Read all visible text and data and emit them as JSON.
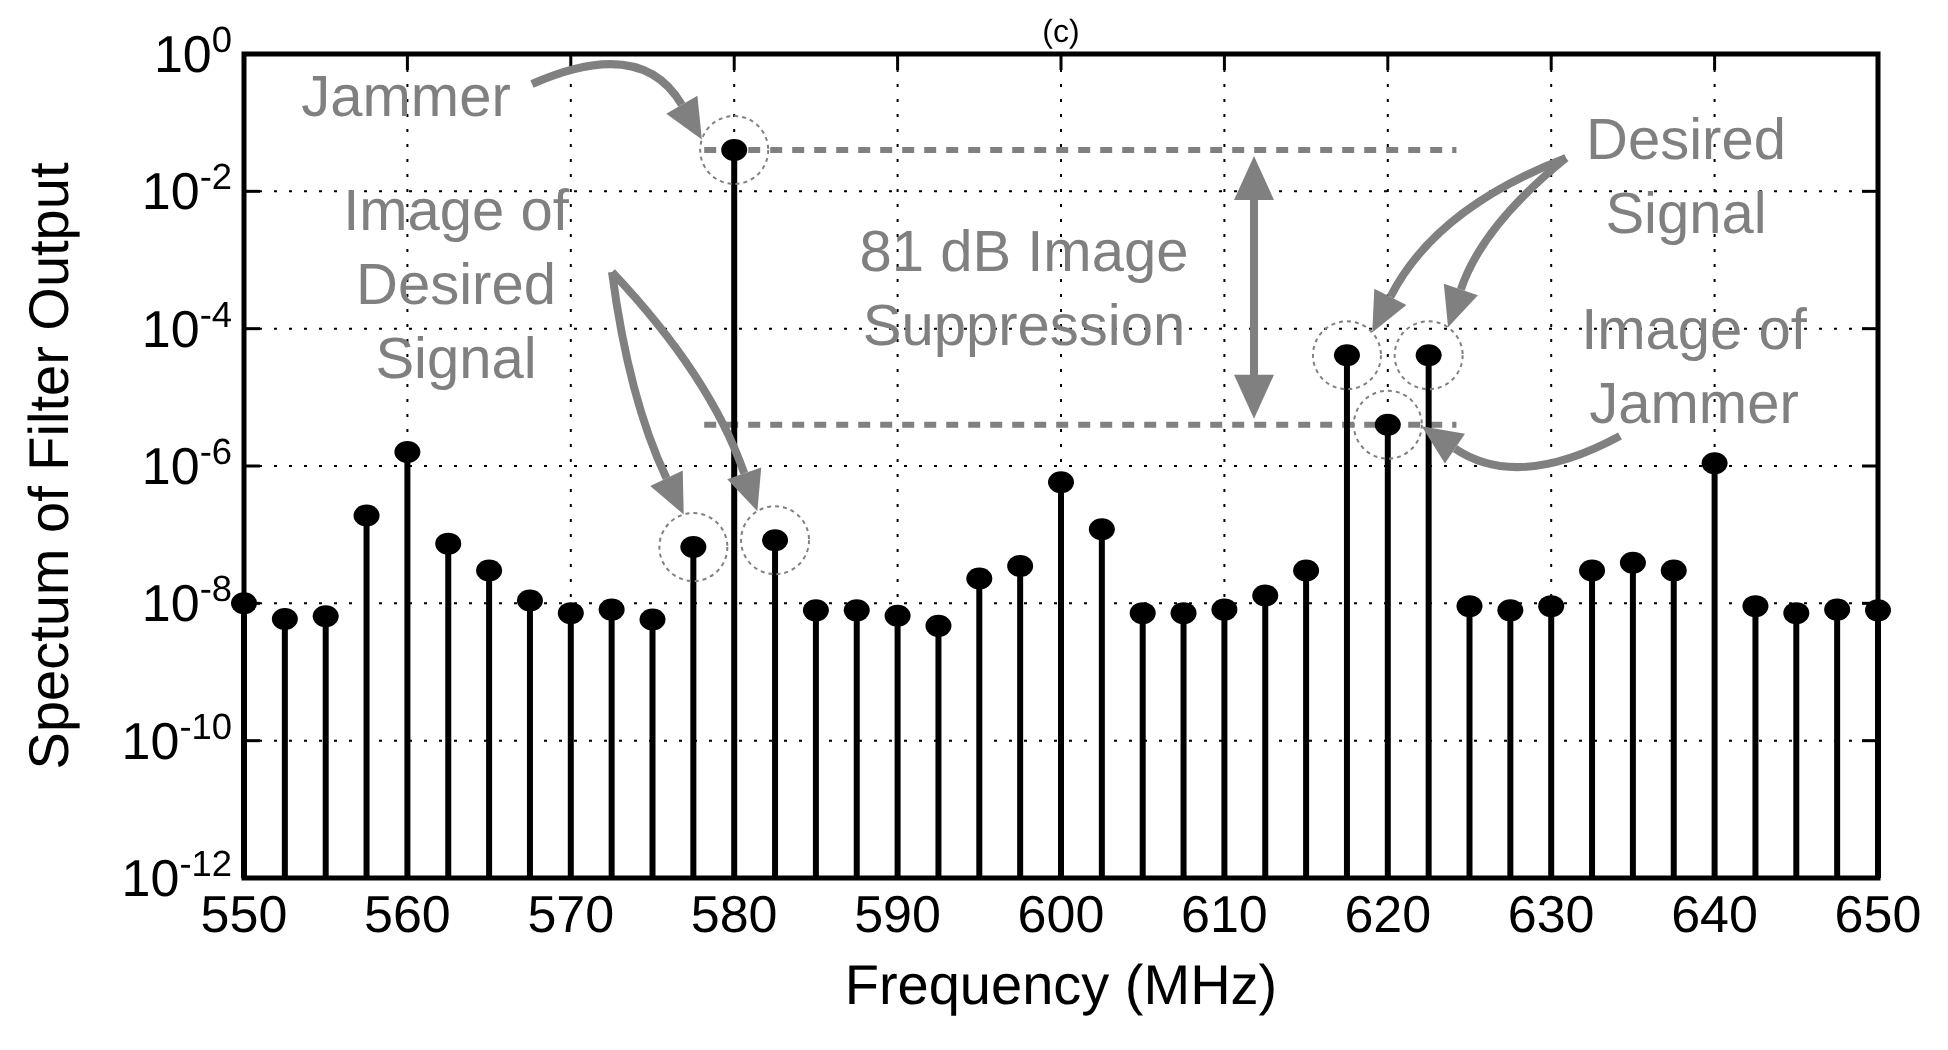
{
  "chart_data": {
    "type": "lollipop",
    "title": "(c)",
    "xlabel": "Frequency (MHz)",
    "ylabel": "Spectum of Filter Output",
    "x": [
      550,
      552.5,
      555,
      557.5,
      560,
      562.5,
      565,
      567.5,
      570,
      572.5,
      575,
      577.5,
      580,
      582.5,
      585,
      587.5,
      590,
      592.5,
      595,
      597.5,
      600,
      602.5,
      605,
      607.5,
      610,
      612.5,
      615,
      617.5,
      620,
      622.5,
      625,
      627.5,
      630,
      632.5,
      635,
      637.5,
      640,
      642.5,
      645,
      647.5,
      650
    ],
    "values": [
      1e-08,
      5.9e-09,
      6.5e-09,
      1.9e-07,
      1.6e-06,
      7.4e-08,
      3e-08,
      1.1e-08,
      7.2e-09,
      8.1e-09,
      5.8e-09,
      6.6e-08,
      0.04,
      8.3e-08,
      7.9e-09,
      7.9e-09,
      6.6e-09,
      4.7e-09,
      2.3e-08,
      3.5e-08,
      5.8e-07,
      1.2e-07,
      7.2e-09,
      7.2e-09,
      8.1e-09,
      1.3e-08,
      3e-08,
      4.1e-05,
      4e-06,
      4.1e-05,
      9.1e-09,
      7.9e-09,
      9.1e-09,
      3e-08,
      3.9e-08,
      3e-08,
      1.1e-06,
      9.1e-09,
      7.2e-09,
      8.1e-09,
      7.9e-09
    ],
    "color": "#000000",
    "marker": "circle",
    "log": "y",
    "grid": true,
    "xlim": [
      550,
      650
    ],
    "xticks": [
      550,
      560,
      570,
      580,
      590,
      600,
      610,
      620,
      630,
      640,
      650
    ],
    "ylim": [
      1e-12,
      1
    ],
    "yticks": [
      {
        "value": 1e-12,
        "label": "10$^{-12}$"
      },
      {
        "value": 1e-10,
        "label": "10$^{-10}$"
      },
      {
        "value": 1e-08,
        "label": "10$^{-8}$"
      },
      {
        "value": 1e-06,
        "label": "10$^{-6}$"
      },
      {
        "value": 0.0001,
        "label": "10$^{-4}$"
      },
      {
        "value": 0.01,
        "label": "10$^{-2}$"
      },
      {
        "value": 1,
        "label": "10$^{0}$"
      }
    ],
    "ref_lines": [
      {
        "axis": "y",
        "value": 0.04,
        "color": "#808080",
        "line_style": "dashed"
      },
      {
        "axis": "y",
        "value": 4e-06,
        "color": "#808080",
        "line_style": "dashed"
      }
    ],
    "annotations": [
      "Jammer",
      "Image of Desired Signal",
      "81 dB Image Suppression",
      "Desired Signal",
      "Image of Jammer"
    ]
  }
}
